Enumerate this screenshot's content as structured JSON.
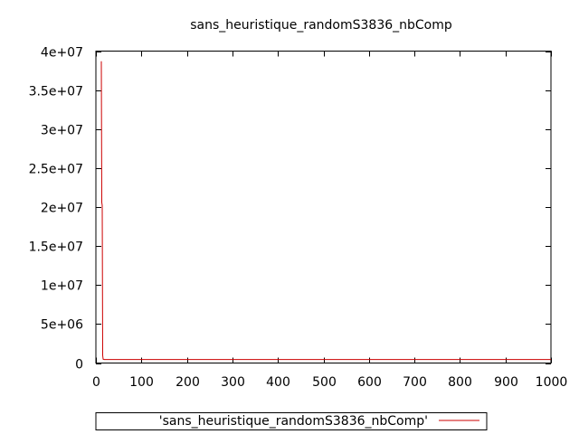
{
  "chart_data": {
    "type": "line",
    "title": "sans_heuristique_randomS3836_nbComp",
    "xlabel": "",
    "ylabel": "",
    "xlim": [
      0,
      1000
    ],
    "ylim": [
      0,
      40000000
    ],
    "x_ticks": [
      0,
      100,
      200,
      300,
      400,
      500,
      600,
      700,
      800,
      900,
      1000
    ],
    "x_tick_labels": [
      "0",
      "100",
      "200",
      "300",
      "400",
      "500",
      "600",
      "700",
      "800",
      "900",
      "1000"
    ],
    "y_ticks": [
      0,
      5000000,
      10000000,
      15000000,
      20000000,
      25000000,
      30000000,
      35000000,
      40000000
    ],
    "y_tick_labels": [
      "0",
      "5e+06",
      "1e+07",
      "1.5e+07",
      "2e+07",
      "2.5e+07",
      "3e+07",
      "3.5e+07",
      "4e+07"
    ],
    "grid": false,
    "legend_position": "bottom-center",
    "series": [
      {
        "name": "'sans_heuristique_randomS3836_nbComp'",
        "color": "#cc0000",
        "x": [
          12,
          13,
          14,
          15,
          16,
          17,
          18,
          1000
        ],
        "y": [
          38700000,
          20600000,
          20200000,
          1000000,
          500000,
          480000,
          450000,
          450000
        ]
      }
    ]
  }
}
